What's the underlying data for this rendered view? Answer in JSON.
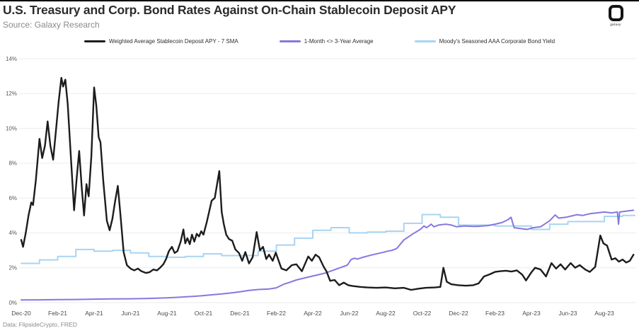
{
  "header": {
    "title": "U.S. Treasury and Corp. Bond Rates Against On-Chain Stablecoin Deposit APY",
    "source": "Source: Galaxy Research",
    "logo_text": "galaxy"
  },
  "footer": {
    "note": "Data: FlipsideCrypto, FRED"
  },
  "colors": {
    "stablecoin_line": "#1c1c1c",
    "treasury_line": "#8678de",
    "moodys_line": "#a8d4f3",
    "grid": "#ebebeb",
    "axis_text": "#595959",
    "x_axis_text": "#4a4a4a",
    "title_text": "#2b2b2b",
    "muted_text": "#8a8a8a"
  },
  "chart_data": {
    "type": "line",
    "title": "U.S. Treasury and Corp. Bond Rates Against On-Chain Stablecoin Deposit APY",
    "grid": true,
    "legend_position": "top",
    "x_axis": {
      "unit": "months_since_Dec-2020",
      "tick_step_months": 2,
      "tick_labels": [
        "Dec-20",
        "Feb-21",
        "Apr-21",
        "Jun-21",
        "Aug-21",
        "Oct-21",
        "Dec-21",
        "Feb-22",
        "Apr-22",
        "Jun-22",
        "Aug-22",
        "Oct-22",
        "Dec-22",
        "Feb-23",
        "Apr-23",
        "Jun-23",
        "Aug-23"
      ],
      "t_end": 33.67
    },
    "y_axis": {
      "min": 0,
      "max": 14,
      "step": 2,
      "tick_labels": [
        "0%",
        "2%",
        "4%",
        "6%",
        "8%",
        "10%",
        "12%",
        "14%"
      ]
    },
    "series": [
      {
        "name": "Moody's Seasoned AAA Corporate Bond Yield",
        "color": "#a8d4f3",
        "width": 2,
        "render": "step",
        "monthly_values": [
          2.25,
          2.45,
          2.65,
          3.05,
          2.95,
          3.0,
          2.85,
          2.65,
          2.6,
          2.65,
          2.8,
          2.7,
          2.7,
          2.95,
          3.3,
          3.7,
          4.15,
          4.3,
          4.0,
          4.05,
          4.1,
          4.55,
          5.05,
          4.9,
          4.45,
          4.45,
          4.4,
          4.4,
          4.2,
          4.5,
          4.65,
          4.65,
          4.95,
          5.0
        ]
      },
      {
        "name": "1-Month <> 3-Year Average",
        "color": "#8678de",
        "width": 2,
        "render": "line",
        "points": [
          [
            0,
            0.15
          ],
          [
            1,
            0.16
          ],
          [
            2,
            0.17
          ],
          [
            3,
            0.18
          ],
          [
            4,
            0.2
          ],
          [
            5,
            0.21
          ],
          [
            6,
            0.22
          ],
          [
            7,
            0.24
          ],
          [
            8,
            0.27
          ],
          [
            8.5,
            0.3
          ],
          [
            9,
            0.33
          ],
          [
            9.5,
            0.36
          ],
          [
            10,
            0.4
          ],
          [
            10.5,
            0.45
          ],
          [
            11,
            0.5
          ],
          [
            11.5,
            0.55
          ],
          [
            12,
            0.62
          ],
          [
            12.5,
            0.7
          ],
          [
            13,
            0.75
          ],
          [
            13.6,
            0.78
          ],
          [
            14,
            0.85
          ],
          [
            14.4,
            1.05
          ],
          [
            14.75,
            1.17
          ],
          [
            15.1,
            1.3
          ],
          [
            15.5,
            1.4
          ],
          [
            15.9,
            1.5
          ],
          [
            16.3,
            1.6
          ],
          [
            16.7,
            1.7
          ],
          [
            17.1,
            1.85
          ],
          [
            17.5,
            2.0
          ],
          [
            17.9,
            2.15
          ],
          [
            18.1,
            2.47
          ],
          [
            18.3,
            2.55
          ],
          [
            18.45,
            2.5
          ],
          [
            18.75,
            2.6
          ],
          [
            19.0,
            2.67
          ],
          [
            19.3,
            2.75
          ],
          [
            19.8,
            2.87
          ],
          [
            20.1,
            2.95
          ],
          [
            20.35,
            3.0
          ],
          [
            20.6,
            3.1
          ],
          [
            21.0,
            3.6
          ],
          [
            21.5,
            3.95
          ],
          [
            21.9,
            4.2
          ],
          [
            22.1,
            4.4
          ],
          [
            22.25,
            4.3
          ],
          [
            22.5,
            4.5
          ],
          [
            22.65,
            4.35
          ],
          [
            22.9,
            4.45
          ],
          [
            23.3,
            4.5
          ],
          [
            23.6,
            4.45
          ],
          [
            23.9,
            4.35
          ],
          [
            24.3,
            4.4
          ],
          [
            24.7,
            4.38
          ],
          [
            25.0,
            4.37
          ],
          [
            25.6,
            4.42
          ],
          [
            26.0,
            4.5
          ],
          [
            26.4,
            4.6
          ],
          [
            26.7,
            4.75
          ],
          [
            26.88,
            4.9
          ],
          [
            27.05,
            4.3
          ],
          [
            27.4,
            4.25
          ],
          [
            27.75,
            4.2
          ],
          [
            28.1,
            4.3
          ],
          [
            28.5,
            4.35
          ],
          [
            29.0,
            4.7
          ],
          [
            29.3,
            5.03
          ],
          [
            29.5,
            4.85
          ],
          [
            29.9,
            4.9
          ],
          [
            30.5,
            5.05
          ],
          [
            30.8,
            5.0
          ],
          [
            31.2,
            5.1
          ],
          [
            31.6,
            5.15
          ],
          [
            32.0,
            5.2
          ],
          [
            32.4,
            5.15
          ],
          [
            32.72,
            5.2
          ],
          [
            32.78,
            4.5
          ],
          [
            32.84,
            5.2
          ],
          [
            33.2,
            5.25
          ],
          [
            33.6,
            5.3
          ]
        ]
      },
      {
        "name": "Weighted Average Stablecoin Deposit APY - 7 SMA",
        "color": "#1c1c1c",
        "width": 2.4,
        "render": "line",
        "points": [
          [
            0,
            3.6
          ],
          [
            0.1,
            3.2
          ],
          [
            0.25,
            4.0
          ],
          [
            0.4,
            5.0
          ],
          [
            0.55,
            5.75
          ],
          [
            0.65,
            5.6
          ],
          [
            0.8,
            7.0
          ],
          [
            1.0,
            9.4
          ],
          [
            1.15,
            8.3
          ],
          [
            1.3,
            9.0
          ],
          [
            1.45,
            10.4
          ],
          [
            1.6,
            9.0
          ],
          [
            1.75,
            8.2
          ],
          [
            1.9,
            9.8
          ],
          [
            2.05,
            11.5
          ],
          [
            2.2,
            12.9
          ],
          [
            2.3,
            12.4
          ],
          [
            2.42,
            12.8
          ],
          [
            2.55,
            11.4
          ],
          [
            2.7,
            8.8
          ],
          [
            2.9,
            5.3
          ],
          [
            3.05,
            7.2
          ],
          [
            3.18,
            8.7
          ],
          [
            3.32,
            6.6
          ],
          [
            3.45,
            5.0
          ],
          [
            3.58,
            6.8
          ],
          [
            3.7,
            6.1
          ],
          [
            3.85,
            8.4
          ],
          [
            4.0,
            12.35
          ],
          [
            4.12,
            11.3
          ],
          [
            4.25,
            9.5
          ],
          [
            4.35,
            9.2
          ],
          [
            4.5,
            7.0
          ],
          [
            4.7,
            4.7
          ],
          [
            4.85,
            4.15
          ],
          [
            5.0,
            4.8
          ],
          [
            5.15,
            5.8
          ],
          [
            5.3,
            6.7
          ],
          [
            5.45,
            5.0
          ],
          [
            5.62,
            2.9
          ],
          [
            5.8,
            2.15
          ],
          [
            6.0,
            1.95
          ],
          [
            6.2,
            1.85
          ],
          [
            6.4,
            1.95
          ],
          [
            6.6,
            1.8
          ],
          [
            6.85,
            1.7
          ],
          [
            7.05,
            1.75
          ],
          [
            7.25,
            1.9
          ],
          [
            7.45,
            1.85
          ],
          [
            7.62,
            2.0
          ],
          [
            7.8,
            2.2
          ],
          [
            7.95,
            2.5
          ],
          [
            8.1,
            2.95
          ],
          [
            8.27,
            3.2
          ],
          [
            8.42,
            2.85
          ],
          [
            8.57,
            2.95
          ],
          [
            8.75,
            3.5
          ],
          [
            8.9,
            4.2
          ],
          [
            9.0,
            3.4
          ],
          [
            9.12,
            3.7
          ],
          [
            9.25,
            3.35
          ],
          [
            9.37,
            3.9
          ],
          [
            9.5,
            3.5
          ],
          [
            9.63,
            3.95
          ],
          [
            9.76,
            3.8
          ],
          [
            9.88,
            4.1
          ],
          [
            10.0,
            3.9
          ],
          [
            10.18,
            4.6
          ],
          [
            10.33,
            5.3
          ],
          [
            10.45,
            5.85
          ],
          [
            10.62,
            6.0
          ],
          [
            10.87,
            7.55
          ],
          [
            11.0,
            5.2
          ],
          [
            11.12,
            4.5
          ],
          [
            11.25,
            3.9
          ],
          [
            11.4,
            3.65
          ],
          [
            11.58,
            3.55
          ],
          [
            11.75,
            3.05
          ],
          [
            11.95,
            2.85
          ],
          [
            12.13,
            2.4
          ],
          [
            12.3,
            2.9
          ],
          [
            12.5,
            2.25
          ],
          [
            12.7,
            2.6
          ],
          [
            12.92,
            4.05
          ],
          [
            13.1,
            3.0
          ],
          [
            13.27,
            3.2
          ],
          [
            13.45,
            2.5
          ],
          [
            13.6,
            2.75
          ],
          [
            13.8,
            2.4
          ],
          [
            13.97,
            2.87
          ],
          [
            14.28,
            1.95
          ],
          [
            14.55,
            1.85
          ],
          [
            14.85,
            2.15
          ],
          [
            15.1,
            2.2
          ],
          [
            15.4,
            1.8
          ],
          [
            15.75,
            2.65
          ],
          [
            15.95,
            2.4
          ],
          [
            16.15,
            2.75
          ],
          [
            16.35,
            2.6
          ],
          [
            16.6,
            2.05
          ],
          [
            16.75,
            1.8
          ],
          [
            16.95,
            1.25
          ],
          [
            17.2,
            1.3
          ],
          [
            17.45,
            1.0
          ],
          [
            17.7,
            1.15
          ],
          [
            17.95,
            1.0
          ],
          [
            18.2,
            0.95
          ],
          [
            18.6,
            0.9
          ],
          [
            19.0,
            0.87
          ],
          [
            19.5,
            0.85
          ],
          [
            20.0,
            0.87
          ],
          [
            20.5,
            0.82
          ],
          [
            21.0,
            0.85
          ],
          [
            21.4,
            0.73
          ],
          [
            21.8,
            0.8
          ],
          [
            22.2,
            0.85
          ],
          [
            22.7,
            0.87
          ],
          [
            23.0,
            0.9
          ],
          [
            23.17,
            2.0
          ],
          [
            23.35,
            1.2
          ],
          [
            23.6,
            1.05
          ],
          [
            24.0,
            1.0
          ],
          [
            24.4,
            0.97
          ],
          [
            24.8,
            1.0
          ],
          [
            25.1,
            1.1
          ],
          [
            25.4,
            1.5
          ],
          [
            25.7,
            1.62
          ],
          [
            26.0,
            1.76
          ],
          [
            26.3,
            1.8
          ],
          [
            26.6,
            1.83
          ],
          [
            26.9,
            1.78
          ],
          [
            27.2,
            1.85
          ],
          [
            27.5,
            1.6
          ],
          [
            27.7,
            1.27
          ],
          [
            28.0,
            1.74
          ],
          [
            28.2,
            2.0
          ],
          [
            28.5,
            1.9
          ],
          [
            28.8,
            1.5
          ],
          [
            29.1,
            2.27
          ],
          [
            29.35,
            1.95
          ],
          [
            29.6,
            2.2
          ],
          [
            29.85,
            1.9
          ],
          [
            30.15,
            2.27
          ],
          [
            30.4,
            2.0
          ],
          [
            30.65,
            2.15
          ],
          [
            30.95,
            1.9
          ],
          [
            31.2,
            1.76
          ],
          [
            31.5,
            2.05
          ],
          [
            31.78,
            3.85
          ],
          [
            31.95,
            3.4
          ],
          [
            32.15,
            3.27
          ],
          [
            32.4,
            2.47
          ],
          [
            32.6,
            2.55
          ],
          [
            32.8,
            2.35
          ],
          [
            33.0,
            2.47
          ],
          [
            33.2,
            2.3
          ],
          [
            33.4,
            2.4
          ],
          [
            33.6,
            2.75
          ]
        ]
      }
    ]
  }
}
